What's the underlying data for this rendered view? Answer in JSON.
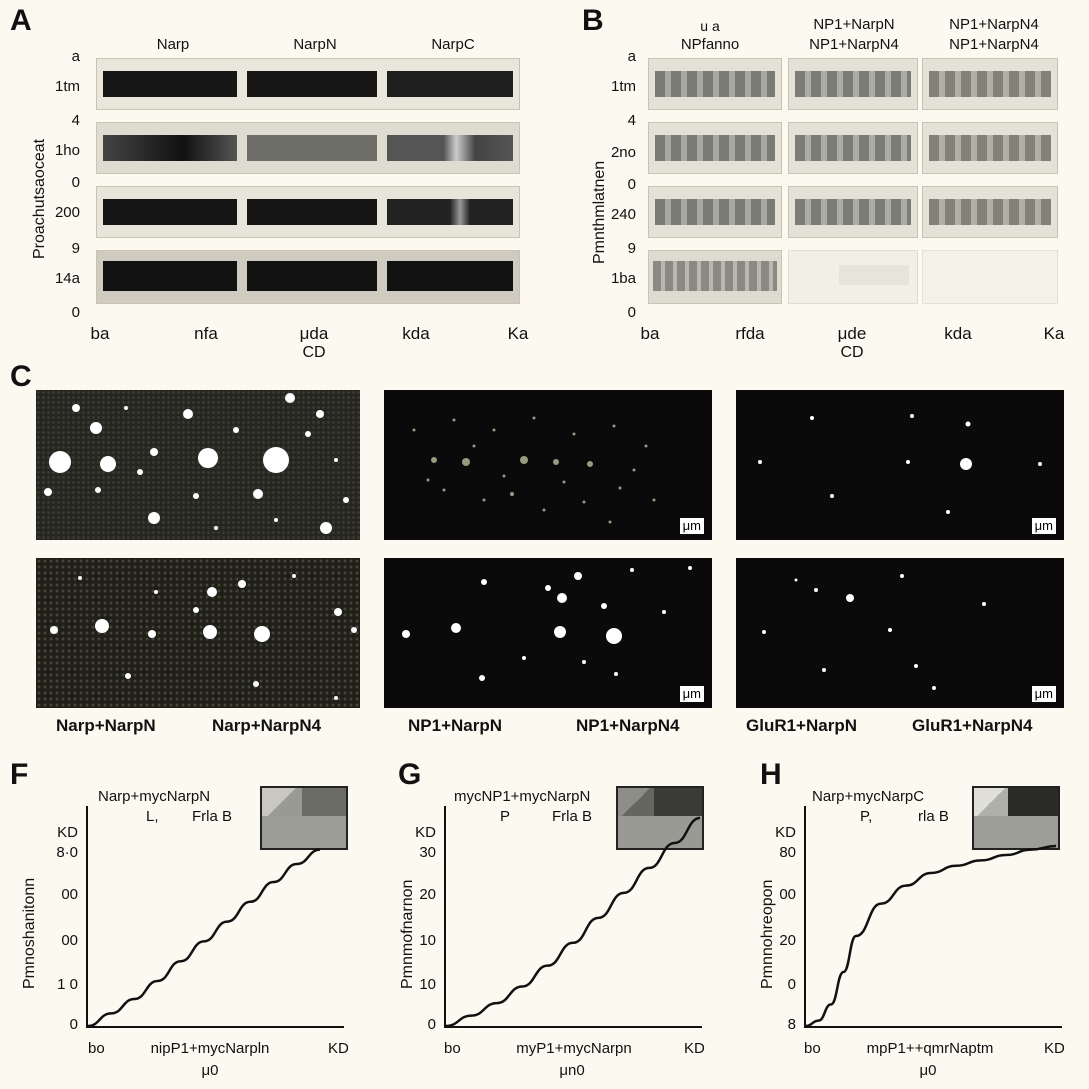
{
  "panels": {
    "A": {
      "letter": "A",
      "col_headers": [
        "Narp",
        "NarpN",
        "NarpC"
      ],
      "y_label": "Proachutsaoceat",
      "y_ticks": [
        "a",
        "1tm",
        "4",
        "1ho",
        "0",
        "200",
        "9",
        "14a",
        "0"
      ],
      "x_ticks": [
        "ba",
        "nfa",
        "μda",
        "kda",
        "Ka"
      ],
      "x_label": "CD"
    },
    "B": {
      "letter": "B",
      "col_headers": [
        {
          "line1": "",
          "line2": "NPfanno"
        },
        {
          "line1": "NP1+NarpN",
          "line2": "NP1+NarpN4"
        },
        {
          "line1": "NP1+NarpN4",
          "line2": "NP1+NarpN4"
        }
      ],
      "col_header_small": "u a",
      "y_label": "Pmnthmlatnen",
      "y_ticks": [
        "a",
        "1tm",
        "4",
        "2no",
        "0",
        "240",
        "9",
        "1ba",
        "0"
      ],
      "x_ticks": [
        "ba",
        "rfda",
        "μde",
        "kda",
        "Ka"
      ],
      "x_label": "CD"
    },
    "C": {
      "letter": "C",
      "scale_label": "μm",
      "captions": [
        "Narp+NarpN",
        "Narp+NarpN4",
        "NP1+NarpN",
        "NP1+NarpN4",
        "GluR1+NarpN",
        "GluR1+NarpN4"
      ]
    },
    "F": {
      "letter": "F",
      "title": "Narp+mycNarpN",
      "subtitle_left": "L,",
      "subtitle_right": "Frla B",
      "y_label": "Pmnoshanitonn",
      "y_ticks": [
        "KD",
        "8·0",
        "00",
        "00",
        "1 0",
        "0"
      ],
      "x_ticks": [
        "bo",
        "nipP1+mycNarpln",
        "KD"
      ],
      "x_label": "μ0"
    },
    "G": {
      "letter": "G",
      "title": "mycNP1+mycNarpN",
      "subtitle_left": "P",
      "subtitle_right": "Frla B",
      "y_label": "Pmnmofnarnon",
      "y_ticks": [
        "KD",
        "30",
        "20",
        "10",
        "10",
        "0"
      ],
      "x_ticks": [
        "bo",
        "myP1+mycNarpn",
        "KD"
      ],
      "x_label": "μn0"
    },
    "H": {
      "letter": "H",
      "title": "Narp+mycNarpC",
      "subtitle_left": "P,",
      "subtitle_right": "rla B",
      "y_label": "Pmnnohreopon",
      "y_ticks": [
        "KD",
        "80",
        "00",
        "20",
        "0",
        "8"
      ],
      "x_ticks": [
        "bo",
        "mpP1++qmrNaptm",
        "KD"
      ],
      "x_label": "μ0"
    }
  },
  "chart_data": [
    {
      "type": "line",
      "panel": "F",
      "x": [
        0,
        0.1,
        0.2,
        0.3,
        0.4,
        0.5,
        0.6,
        0.7,
        0.8,
        0.9,
        1.0
      ],
      "series": [
        {
          "values": [
            0,
            0.07,
            0.15,
            0.25,
            0.36,
            0.47,
            0.58,
            0.69,
            0.8,
            0.9,
            0.98
          ]
        }
      ]
    },
    {
      "type": "line",
      "panel": "G",
      "x": [
        0,
        0.1,
        0.2,
        0.3,
        0.4,
        0.5,
        0.6,
        0.7,
        0.8,
        0.9,
        1.0
      ],
      "series": [
        {
          "values": [
            0,
            0.05,
            0.11,
            0.19,
            0.29,
            0.4,
            0.52,
            0.64,
            0.76,
            0.88,
            1.0
          ]
        }
      ]
    },
    {
      "type": "line",
      "panel": "H",
      "x": [
        0,
        0.05,
        0.1,
        0.15,
        0.2,
        0.3,
        0.4,
        0.5,
        0.6,
        0.7,
        0.8,
        0.9,
        1.0
      ],
      "series": [
        {
          "values": [
            0,
            0.03,
            0.12,
            0.3,
            0.5,
            0.68,
            0.78,
            0.85,
            0.89,
            0.92,
            0.95,
            0.98,
            1.0
          ]
        }
      ]
    }
  ],
  "colors": {
    "background": "#fbf9f0",
    "band_dark": "#141414",
    "band_gray": "#8e8e86",
    "micro_bg": "#0a0a0a"
  }
}
